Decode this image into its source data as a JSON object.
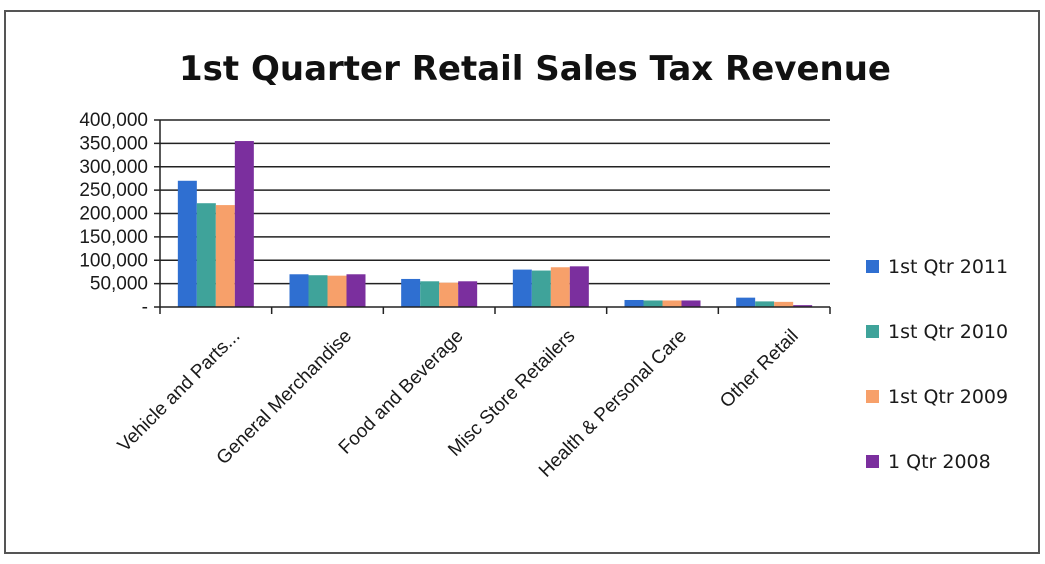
{
  "chart_data": {
    "type": "bar",
    "title": "1st Quarter Retail Sales Tax Revenue",
    "xlabel": "",
    "ylabel": "",
    "ylim": [
      0,
      400000
    ],
    "yticks": [
      0,
      50000,
      100000,
      150000,
      200000,
      250000,
      300000,
      350000,
      400000
    ],
    "ytick_labels": [
      "-",
      "50,000",
      "100,000",
      "150,000",
      "200,000",
      "250,000",
      "300,000",
      "350,000",
      "400,000"
    ],
    "grid": true,
    "legend_position": "right",
    "categories": [
      "Vehicle and Parts...",
      "General Merchandise",
      "Food and Beverage",
      "Misc Store Retailers",
      "Health & Personal Care",
      "Other Retail"
    ],
    "series": [
      {
        "name": "1st Qtr 2011",
        "color": "#2f6fd1",
        "values": [
          270000,
          70000,
          60000,
          80000,
          15000,
          20000
        ]
      },
      {
        "name": "1st Qtr 2010",
        "color": "#3fa39a",
        "values": [
          222000,
          68000,
          55000,
          78000,
          14000,
          12000
        ]
      },
      {
        "name": "1st Qtr 2009",
        "color": "#f7a06a",
        "values": [
          218000,
          67000,
          52000,
          85000,
          14000,
          11000
        ]
      },
      {
        "name": "1 Qtr 2008",
        "color": "#7b2f9e",
        "values": [
          355000,
          70000,
          55000,
          87000,
          14000,
          4000
        ]
      }
    ]
  }
}
